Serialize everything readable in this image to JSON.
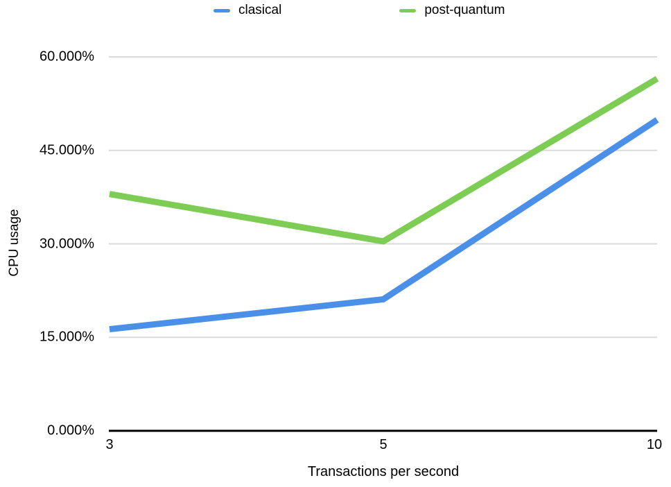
{
  "chart_data": {
    "type": "line",
    "categories": [
      "3",
      "5",
      "10"
    ],
    "series": [
      {
        "name": "clasical",
        "color": "#4a90e8",
        "values": [
          16.3,
          21.1,
          49.9
        ]
      },
      {
        "name": "post-quantum",
        "color": "#7dcd55",
        "values": [
          38.0,
          30.4,
          56.5
        ]
      }
    ],
    "title": "",
    "xlabel": "Transactions per second",
    "ylabel": "CPU usage",
    "ylim": [
      0,
      60
    ],
    "ytick_step": 15,
    "ytick_labels": [
      "0.000%",
      "15.000%",
      "30.000%",
      "45.000%",
      "60.000%"
    ],
    "grid": "horizontal",
    "legend_position": "top"
  },
  "colors": {
    "gridline": "#d9d9d9",
    "axis": "#000000",
    "background": "#ffffff",
    "text": "#000000"
  }
}
